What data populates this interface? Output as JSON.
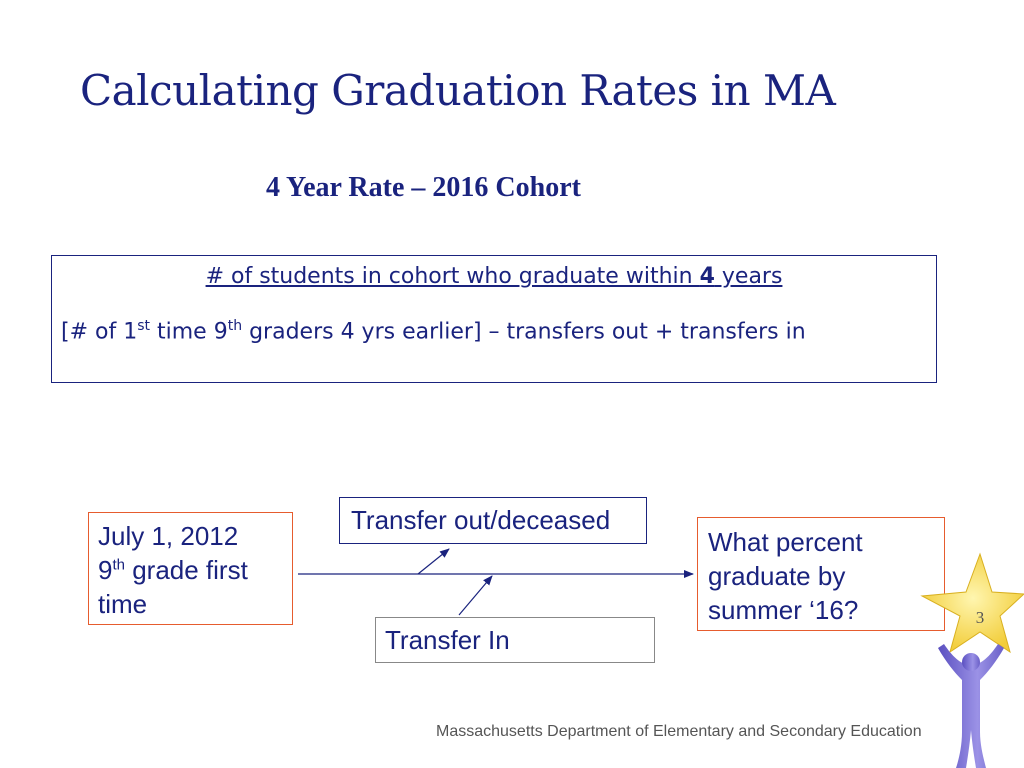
{
  "title": "Calculating Graduation Rates in MA",
  "subtitle": "4 Year Rate – 2016 Cohort",
  "formula": {
    "numerator_pre": "# of students in cohort who graduate within ",
    "numerator_bold": "4",
    "numerator_post": " years",
    "denominator_a": "[# of 1",
    "denominator_sup1": "st",
    "denominator_b": " time 9",
    "denominator_sup2": "th",
    "denominator_c": " graders 4 yrs earlier] – transfers out + transfers in"
  },
  "diagram": {
    "start_line1": "July 1, 2012",
    "start_line2_a": "9",
    "start_line2_sup": "th",
    "start_line2_b": " grade first",
    "start_line3": "time",
    "transfer_out": "Transfer out/deceased",
    "transfer_in": "Transfer In",
    "end_line1": "What percent",
    "end_line2": "graduate by",
    "end_line3": "summer ‘16?"
  },
  "slide_number": "3",
  "footer": "Massachusetts Department of Elementary and Secondary Education",
  "colors": {
    "navy": "#1a237e",
    "orange_border": "#e65c2e",
    "star_yellow": "#f5d547",
    "figure_purple": "#7b6fd0"
  },
  "icons": [
    "star-figure-icon"
  ]
}
